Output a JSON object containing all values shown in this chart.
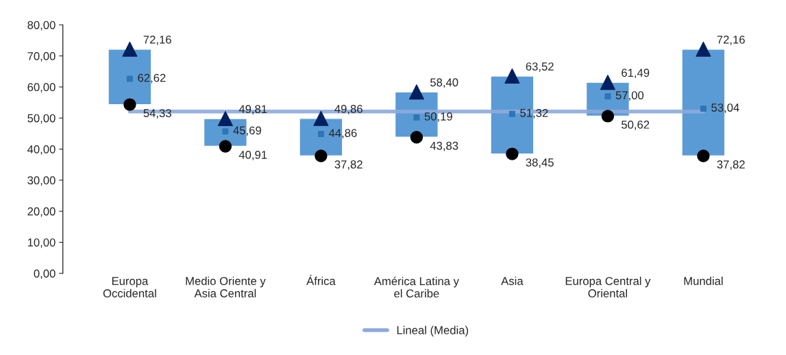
{
  "chart_data": {
    "type": "bar",
    "categories": [
      "Europa\nOccidental",
      "Medio Oriente y\nAsia Central",
      "África",
      "América Latina y\nel Caribe",
      "Asia",
      "Europa Central y\nOriental",
      "Mundial"
    ],
    "base": [
      54.33,
      40.91,
      37.82,
      43.83,
      38.45,
      50.62,
      37.82
    ],
    "values": [
      17.83,
      8.9,
      12.04,
      14.57,
      25.07,
      10.87,
      34.34
    ],
    "color": "#5b9bd5",
    "series": [
      {
        "type": "scatter",
        "marker": "triangle",
        "color": "#002060",
        "x": [
          "Europa\nOccidental",
          "Medio Oriente y\nAsia Central",
          "África",
          "América Latina y\nel Caribe",
          "Asia",
          "Europa Central y\nOriental",
          "Mundial"
        ],
        "values": [
          72.16,
          49.81,
          49.86,
          58.4,
          63.52,
          61.49,
          72.16
        ],
        "value_labels": [
          "72,16",
          "49,81",
          "49,86",
          "58,40",
          "63,52",
          "61,49",
          "72,16"
        ]
      },
      {
        "type": "scatter",
        "marker": "square",
        "color": "#2e75b6",
        "x": [
          "Europa\nOccidental",
          "Medio Oriente y\nAsia Central",
          "África",
          "América Latina y\nel Caribe",
          "Asia",
          "Europa Central y\nOriental",
          "Mundial"
        ],
        "values": [
          62.62,
          45.69,
          44.86,
          50.19,
          51.32,
          57.0,
          53.04
        ],
        "value_labels": [
          "62,62",
          "45,69",
          "44,86",
          "50,19",
          "51,32",
          "57,00",
          "53,04"
        ]
      },
      {
        "type": "scatter",
        "marker": "circle",
        "color": "#000000",
        "x": [
          "Europa\nOccidental",
          "Medio Oriente y\nAsia Central",
          "África",
          "América Latina y\nel Caribe",
          "Asia",
          "Europa Central y\nOriental",
          "Mundial"
        ],
        "values": [
          54.33,
          40.91,
          37.82,
          43.83,
          38.45,
          50.62,
          37.82
        ],
        "value_labels": [
          "54,33",
          "40,91",
          "37,82",
          "43,83",
          "38,45",
          "50,62",
          "37,82"
        ]
      },
      {
        "type": "line",
        "name": "Lineal (Media)",
        "color": "#8eaadb",
        "x": [
          "Europa\nOccidental",
          "Mundial"
        ],
        "values": [
          52.1,
          52.1
        ]
      }
    ],
    "ylim": [
      0,
      80
    ],
    "yticks": [
      {
        "value": 0,
        "label": "0,00"
      },
      {
        "value": 10,
        "label": "10,00"
      },
      {
        "value": 20,
        "label": "20,00"
      },
      {
        "value": 30,
        "label": "30,00"
      },
      {
        "value": 40,
        "label": "40,00"
      },
      {
        "value": 50,
        "label": "50,00"
      },
      {
        "value": 60,
        "label": "60,00"
      },
      {
        "value": 70,
        "label": "70,00"
      },
      {
        "value": 80,
        "label": "80,00"
      }
    ],
    "legend": "bottom"
  }
}
